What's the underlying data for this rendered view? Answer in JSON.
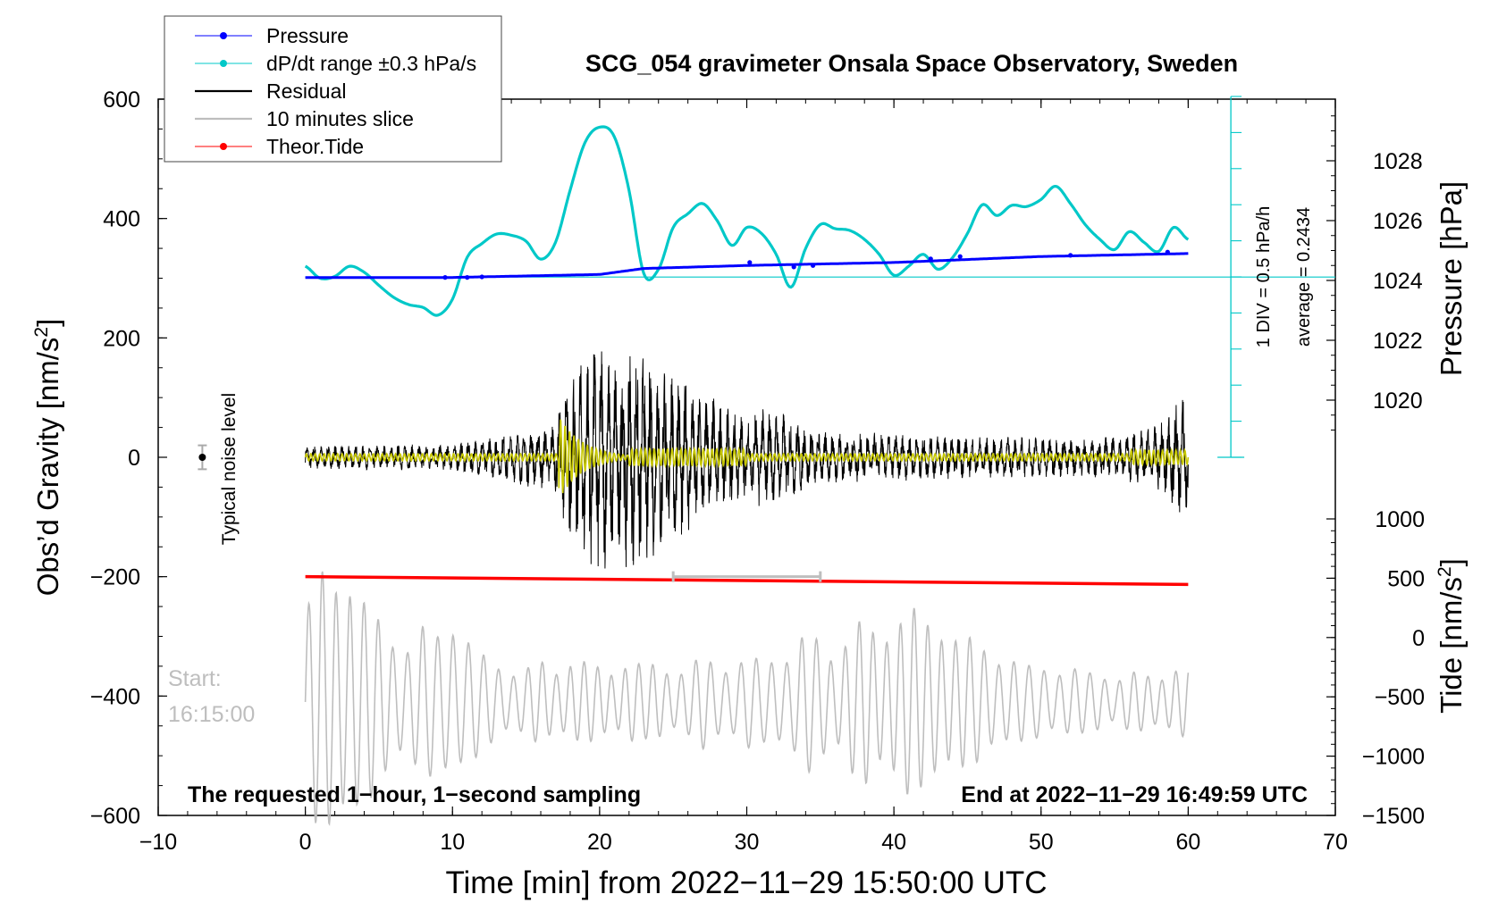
{
  "chart_data": {
    "type": "line",
    "title": "SCG_054 gravimeter Onsala Space Observatory, Sweden",
    "xlabel": "Time [min] from 2022−11−29 15:50:00 UTC",
    "ylabel_left": "Obs’d Gravity [nm/s²]",
    "ylabel_left_main": "Obs’d Gravity [nm/s",
    "ylabel_left_sup": "2",
    "ylabel_left_close": "]",
    "ylabel_right_pressure": "Pressure [hPa]",
    "ylabel_right_tide": "Tide [nm/s²]",
    "ylabel_right_tide_main": "Tide [nm/s",
    "ylabel_right_tide_sup": "2",
    "ylabel_right_tide_close": "]",
    "xlim": [
      -10,
      70
    ],
    "ylim_left": [
      -600,
      600
    ],
    "x_ticks": [
      "−10",
      "0",
      "10",
      "20",
      "30",
      "40",
      "50",
      "60",
      "70"
    ],
    "x_tick_values": [
      -10,
      0,
      10,
      20,
      30,
      40,
      50,
      60,
      70
    ],
    "y_left_ticks": [
      "600",
      "400",
      "200",
      "0",
      "−200",
      "−400",
      "−600"
    ],
    "y_left_tick_values": [
      600,
      400,
      200,
      0,
      -200,
      -400,
      -600
    ],
    "pressure_ticks": [
      "1028",
      "1026",
      "1024",
      "1022",
      "1020"
    ],
    "pressure_tick_values": [
      1028,
      1026,
      1024,
      1022,
      1020
    ],
    "pressure_range_hpa": [
      1018,
      1030
    ],
    "tide_ticks": [
      "1000",
      "500",
      "0",
      "−500",
      "−1000",
      "−1500"
    ],
    "tide_tick_values": [
      1000,
      500,
      0,
      -500,
      -1000,
      -1500
    ],
    "tide_range": [
      -1500,
      1000
    ],
    "legend": [
      {
        "label": "Pressure",
        "color": "#0000ff",
        "marker": true
      },
      {
        "label": "dP/dt range ±0.3 hPa/s",
        "color": "#00c8c8",
        "marker": true
      },
      {
        "label": "Residual",
        "color": "#000000",
        "marker": false
      },
      {
        "label": "10 minutes slice",
        "color": "#bebebe",
        "marker": false
      },
      {
        "label": "Theor.Tide",
        "color": "#ff0000",
        "marker": true
      }
    ],
    "legend_position": "top-left",
    "annotations": {
      "noise_label": "Typical noise level",
      "noise_x": -7,
      "noise_y": 0,
      "noise_err": 20,
      "scale_div": "1 DIV = 0.5 hPa/h",
      "scale_avg": "average = 0.2434",
      "slice_start_label": "Start:",
      "slice_start_time": "16:15:00",
      "slice_marker_x": [
        25,
        35
      ],
      "bottom_left": "The requested 1−hour, 1−second sampling",
      "bottom_right": "End at 2022−11−29 16:49:59 UTC"
    },
    "series": [
      {
        "name": "Pressure",
        "unit": "hPa",
        "x": [
          0,
          10,
          20,
          23,
          30,
          40,
          50,
          60
        ],
        "values": [
          1024.1,
          1024.1,
          1024.2,
          1024.4,
          1024.5,
          1024.6,
          1024.8,
          1024.9
        ]
      },
      {
        "name": "dP/dt range ±0.3 hPa/s",
        "x": [
          0,
          1,
          2,
          3,
          4,
          5,
          6,
          7,
          8,
          9,
          10,
          11,
          12,
          13,
          14,
          15,
          16,
          17,
          18,
          19,
          20,
          21,
          22,
          23,
          24,
          25,
          26,
          27,
          28,
          29,
          30,
          31,
          32,
          33,
          34,
          35,
          36,
          37,
          38,
          39,
          40,
          41,
          42,
          43,
          44,
          45,
          46,
          47,
          48,
          49,
          50,
          51,
          52,
          53,
          54,
          55,
          56,
          57,
          58,
          59,
          60
        ],
        "values": [
          320,
          300,
          303,
          320,
          310,
          288,
          268,
          256,
          251,
          238,
          265,
          335,
          358,
          374,
          372,
          362,
          332,
          360,
          448,
          527,
          553,
          537,
          447,
          308,
          315,
          385,
          408,
          425,
          396,
          355,
          385,
          375,
          340,
          285,
          350,
          390,
          383,
          380,
          365,
          340,
          305,
          320,
          340,
          315,
          335,
          375,
          423,
          405,
          422,
          420,
          432,
          454,
          425,
          390,
          365,
          348,
          378,
          360,
          345,
          385,
          365
        ]
      },
      {
        "name": "Residual",
        "envelope_x": [
          0,
          10,
          17,
          18,
          19,
          20,
          21,
          22,
          23,
          24,
          25,
          26,
          27,
          28,
          29,
          30,
          31,
          32,
          33,
          34,
          35,
          40,
          45,
          50,
          55,
          58,
          59,
          60
        ],
        "envelope_nm_s2": [
          20,
          22,
          60,
          150,
          180,
          200,
          170,
          200,
          190,
          180,
          160,
          130,
          110,
          100,
          80,
          70,
          85,
          80,
          70,
          55,
          45,
          40,
          35,
          35,
          35,
          55,
          90,
          110
        ]
      },
      {
        "name": "10 minutes slice",
        "x": [
          0,
          1,
          2,
          3,
          4,
          5,
          6,
          7,
          8,
          9,
          10,
          11,
          12,
          13,
          14,
          15,
          16,
          17,
          18,
          19,
          20,
          21,
          22,
          23,
          24,
          25,
          26,
          27,
          28,
          29,
          30,
          31,
          32,
          33,
          34,
          35,
          36,
          37,
          38,
          39,
          40,
          41,
          42,
          43,
          44,
          45,
          46,
          47,
          48,
          49,
          50,
          51,
          52,
          53,
          54,
          55,
          56,
          57,
          58,
          59,
          60
        ],
        "amplitude": [
          170,
          220,
          230,
          250,
          180,
          140,
          120,
          110,
          130,
          120,
          160,
          120,
          80,
          70,
          60,
          60,
          70,
          60,
          80,
          70,
          60,
          60,
          80,
          60,
          70,
          60,
          60,
          80,
          70,
          70,
          80,
          70,
          90,
          90,
          120,
          110,
          90,
          130,
          140,
          120,
          160,
          170,
          140,
          150,
          130,
          110,
          100,
          90,
          80,
          60,
          70,
          60,
          60,
          50,
          60,
          40,
          50,
          50,
          50,
          60,
          60
        ]
      },
      {
        "name": "Theor.Tide",
        "x": [
          0,
          60
        ],
        "values": [
          -200,
          -213
        ]
      }
    ]
  }
}
